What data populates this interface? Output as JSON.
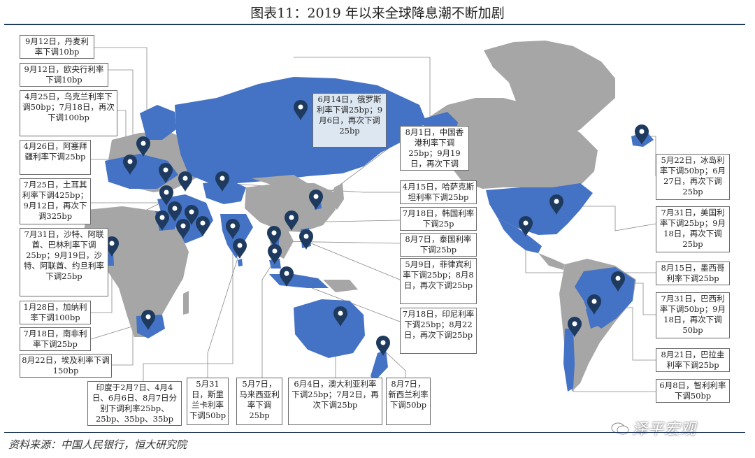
{
  "title": "图表11：2019 年以来全球降息潮不断加剧",
  "source": "资料来源：中国人民银行，恒大研究院",
  "brand": "泽平宏观",
  "colors": {
    "highlight": "#4472c4",
    "land": "#a6a6a6",
    "pin": "#1f3a5f",
    "rule": "#1f3a5f"
  },
  "pin_icon": "map-pin-icon",
  "labels": {
    "denmark": "9月12日，丹麦利率下调10bp",
    "ecb": "9月12日，欧央行利率下调10bp",
    "ukraine": "4月25日，乌克兰利率下调50bp；7月18日，再次下调100bp",
    "azerbaijan": "4月26日，阿塞拜疆利率下调25bp",
    "turkey": "7月25日，土耳其利率下调425bp；9月12日，再次下调325bp",
    "gulf": "7月31日，沙特、阿联酋、巴林利率下调25bp；9月19日，沙特、阿联酋、约旦利率下调25bp",
    "ghana": "1月28日，加纳利率下调100bp",
    "southafrica": "7月18日，南非利率下调25bp",
    "egypt": "8月22日，埃及利率下调150bp",
    "india": "印度于2月7日、4月4日、6月6日、8月7日分别下调利率25bp、25bp、35bp、35bp",
    "srilanka": "5月31日，斯里兰卡利率下调50bp",
    "malaysia": "5月7日，马来西亚利率下调25bp",
    "australia": "6月4日，澳大利亚利率下调25bp；7月2日，再次下调25bp",
    "newzealand": "8月7日，新西兰利率下调50bp",
    "russia": "6月14日，俄罗斯利率下调25bp；9月6日，再次下调25bp",
    "hongkong": "8月1日，中国香港利率下调25bp；9月19日，再次下调25bp",
    "kazakhstan": "4月15日，哈萨克斯坦利率下调25bp",
    "korea": "7月18日，韩国利率下调25p",
    "thailand": "8月7日，泰国利率下调25bp",
    "philippines": "5月9日，菲律宾利率下调25bp；8月8日，再次下调25bp",
    "indonesia": "7月18日，印尼利率下调25bp；8月22日，再次下调25bp",
    "iceland": "5月22日，冰岛利率下调50bp；6月27日，再次下调25bp",
    "usa": "7月31日，美国利率下调25bp；9月18日，再次下调25bp",
    "mexico": "8月15日，墨西哥利率下调25bp",
    "brazil": "7月31日，巴西利率下调50bp；9月18日，再次下调50bp",
    "paraguay": "8月21日，巴拉圭利率下调25bp",
    "chile": "6月8日，智利利率下调50bp"
  }
}
